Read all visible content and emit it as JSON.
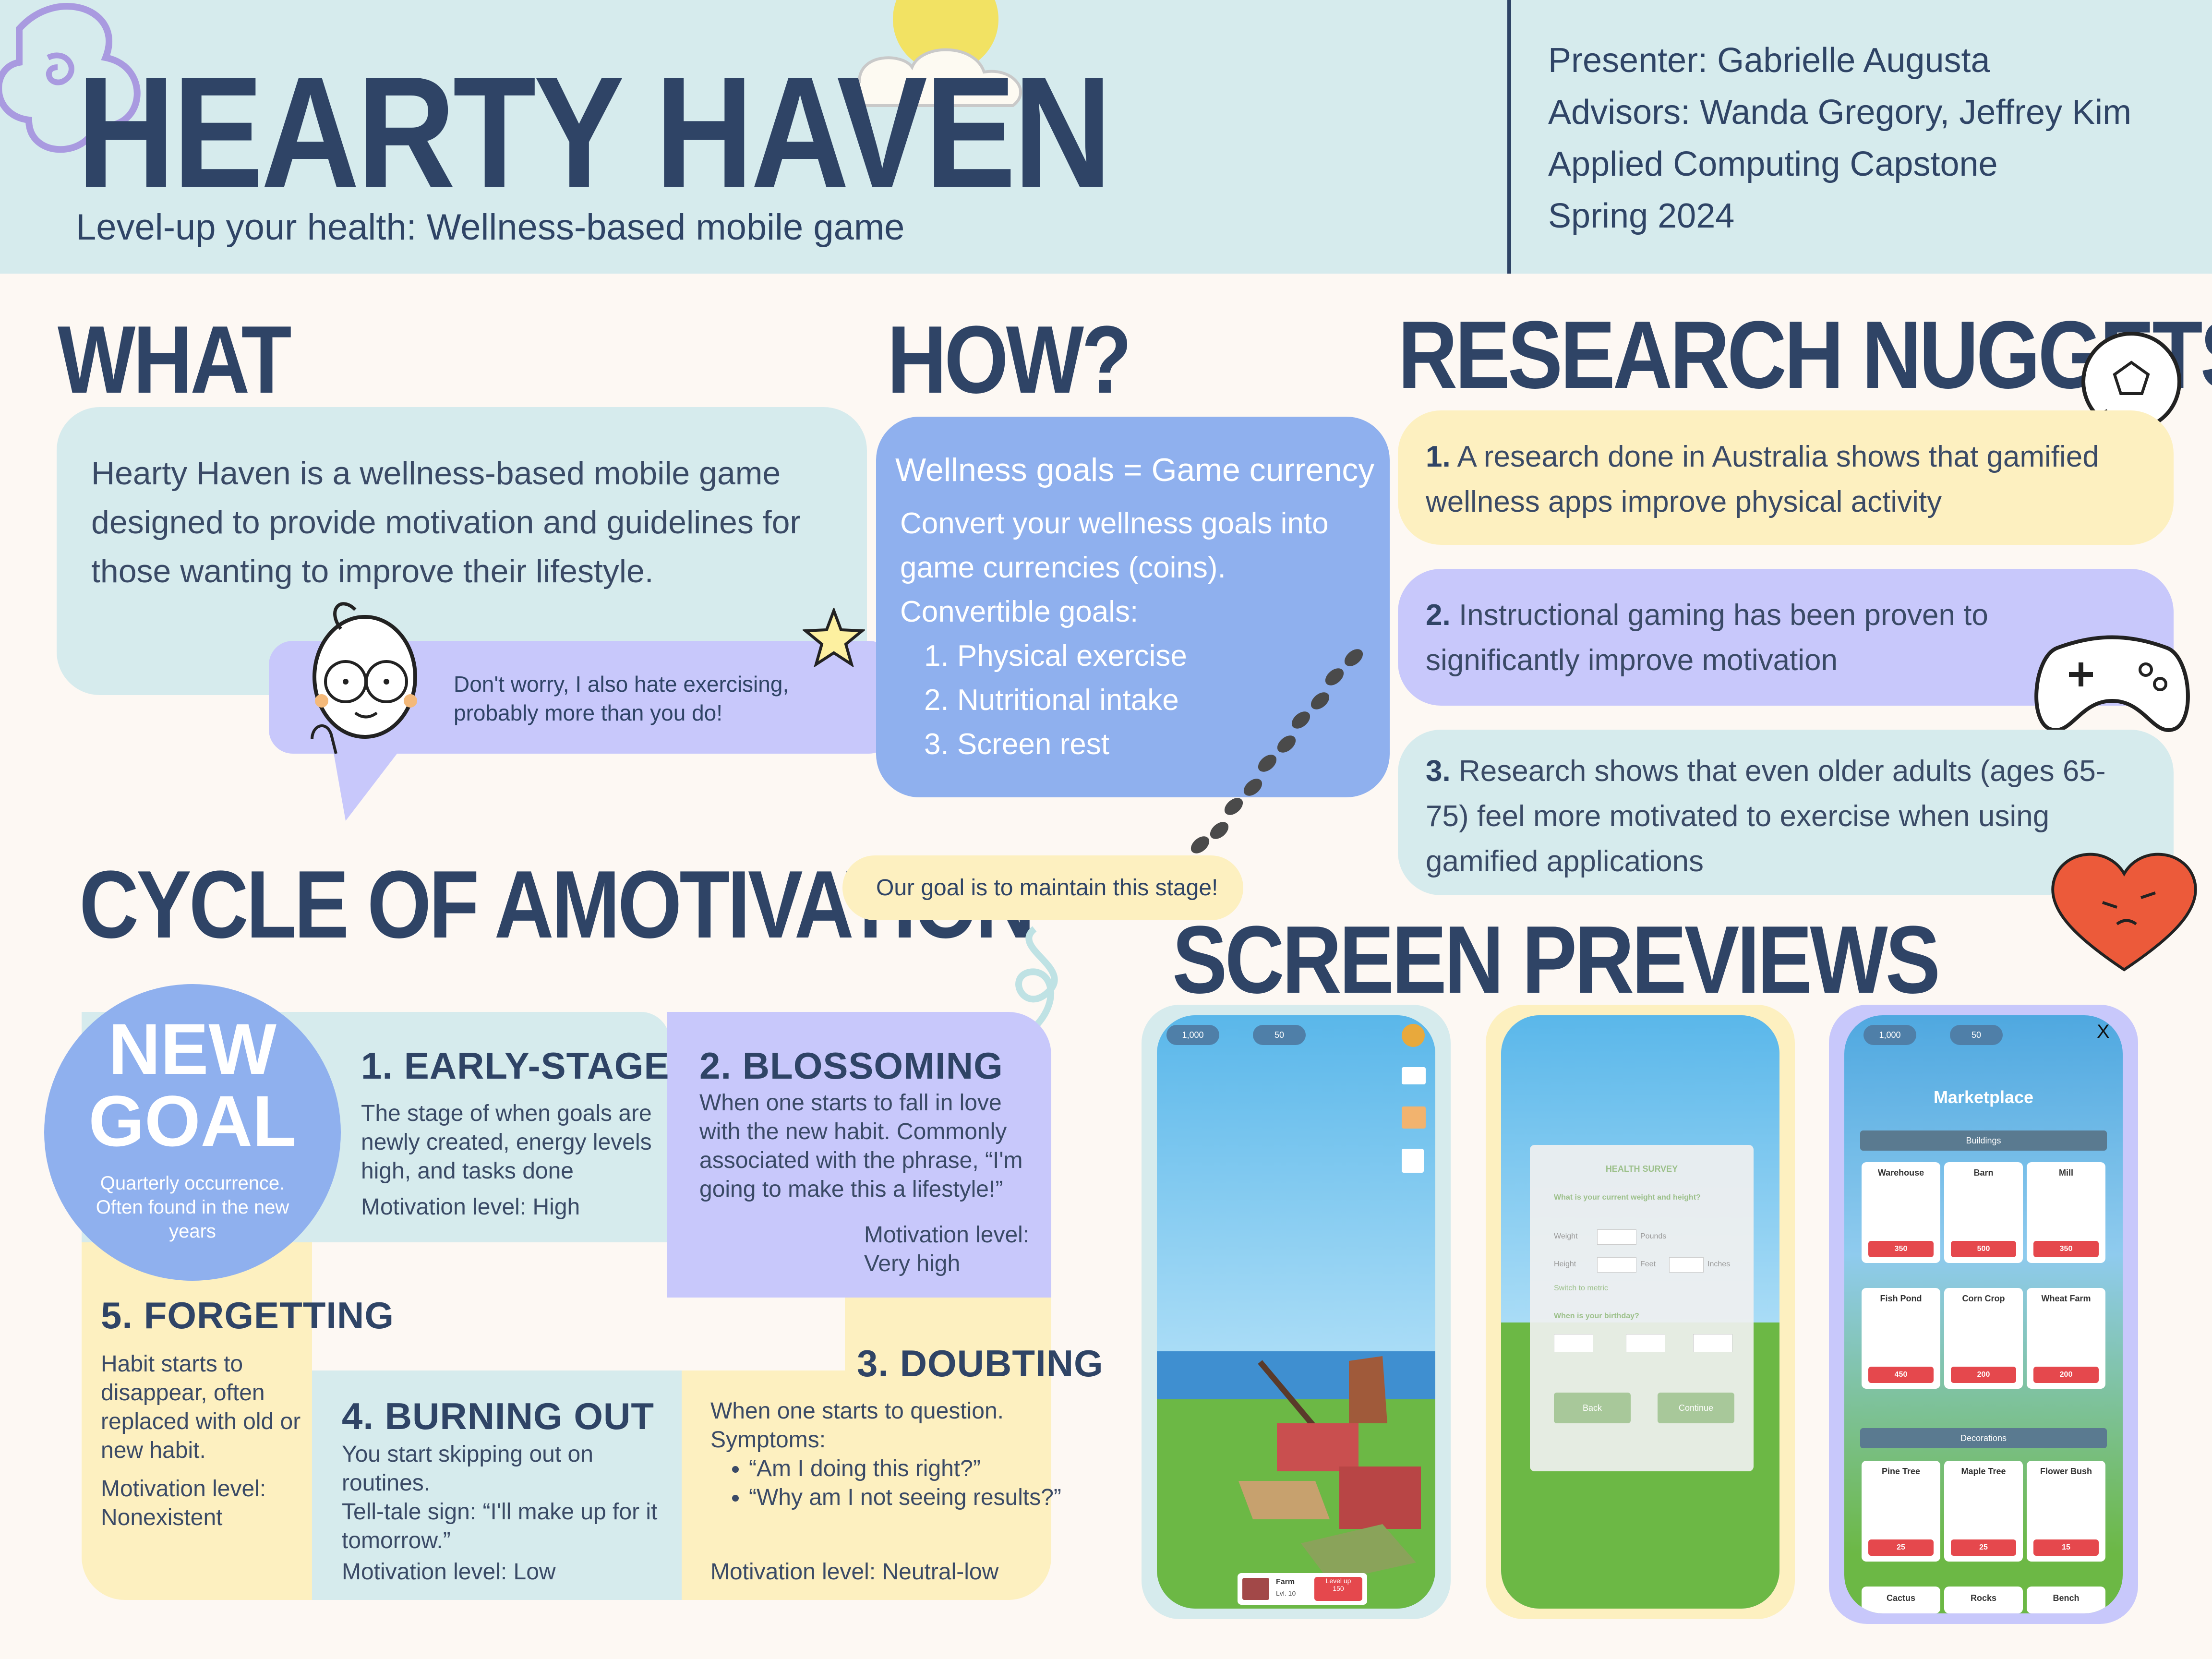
{
  "header": {
    "title": "HEARTY HAVEN",
    "subtitle": "Level-up your health: Wellness-based mobile game",
    "presenter": "Presenter: Gabrielle Augusta",
    "advisors": "Advisors: Wanda Gregory, Jeffrey Kim",
    "course": "Applied Computing Capstone",
    "term": "Spring 2024"
  },
  "what": {
    "heading": "WHAT",
    "body": "Hearty Haven is a wellness-based mobile game designed to provide motivation and guidelines for those wanting to improve their lifestyle.",
    "bubble": "Don't worry, I also hate exercising, probably more than you do!"
  },
  "how": {
    "heading": "HOW?",
    "card_title": "Wellness goals = Game currency",
    "intro": "Convert your wellness goals into game currencies (coins).",
    "goals_label": "Convertible goals:",
    "goals": [
      "1. Physical exercise",
      "2. Nutritional intake",
      "3. Screen rest"
    ]
  },
  "research": {
    "heading": "RESEARCH NUGGETS",
    "items": [
      {
        "num": "1.",
        "text": "A research done in Australia shows that gamified wellness apps improve physical activity"
      },
      {
        "num": "2.",
        "text": "Instructional gaming has been proven to significantly improve motivation"
      },
      {
        "num": "3.",
        "text": "Research shows that even older adults (ages 65-75) feel more motivated to exercise when using gamified applications"
      }
    ]
  },
  "cycle": {
    "heading": "CYCLE OF AMOTIVATION",
    "goal_note": "Our goal is to maintain this stage!",
    "new_goal": {
      "title_1": "NEW",
      "title_2": "GOAL",
      "text": "Quarterly occurrence. Often found in the new years"
    },
    "early": {
      "title": "1. EARLY-STAGE",
      "text": "The stage of when goals are newly created, energy levels high, and tasks done",
      "motivation": "Motivation level: High"
    },
    "blossoming": {
      "title": "2. BLOSSOMING",
      "text": "When one starts to fall in love with the new habit. Commonly associated with the phrase, “I'm going to make this a lifestyle!”",
      "motivation": "Motivation level: Very high"
    },
    "doubting": {
      "title": "3. DOUBTING",
      "text": "When one starts to question. Symptoms:",
      "symptoms": [
        "“Am I doing this right?”",
        "“Why am I not seeing results?”"
      ],
      "motivation": "Motivation level: Neutral-low"
    },
    "burning": {
      "title": "4. BURNING OUT",
      "text": "You start skipping out on routines.",
      "sign": "Tell-tale sign: “I'll make up for it tomorrow.”",
      "motivation": "Motivation level:  Low"
    },
    "forgetting": {
      "title": "5. FORGETTING",
      "text": "Habit starts to disappear, often replaced with old or new habit.",
      "motivation": "Motivation level: Nonexistent"
    }
  },
  "previews": {
    "heading": "SCREEN PREVIEWS",
    "farm": {
      "coins": "1,000",
      "gems": "50",
      "farm_label": "Farm",
      "farm_level": "Lvl. 10",
      "level_up": "Level up",
      "level_cost": "150"
    },
    "survey": {
      "title": "HEALTH SURVEY",
      "q1": "What is your current weight and height?",
      "weight": "Weight",
      "pounds": "Pounds",
      "height": "Height",
      "feet": "Feet",
      "inches": "Inches",
      "metric": "Switch to metric",
      "q2": "When is your birthday?",
      "back": "Back",
      "continue": "Continue"
    },
    "market": {
      "coins": "1,000",
      "gems": "50",
      "title": "Marketplace",
      "close": "X",
      "buildings_label": "Buildings",
      "buildings": [
        {
          "name": "Warehouse",
          "price": "350"
        },
        {
          "name": "Barn",
          "price": "500"
        },
        {
          "name": "Mill",
          "price": "350"
        },
        {
          "name": "Fish Pond",
          "price": "450"
        },
        {
          "name": "Corn Crop",
          "price": "200"
        },
        {
          "name": "Wheat Farm",
          "price": "200"
        }
      ],
      "decorations_label": "Decorations",
      "decorations": [
        {
          "name": "Pine Tree",
          "price": "25"
        },
        {
          "name": "Maple Tree",
          "price": "25"
        },
        {
          "name": "Flower Bush",
          "price": "15"
        }
      ],
      "more": [
        "Cactus",
        "Rocks",
        "Bench"
      ]
    }
  },
  "colors": {
    "navy": "#2f4466",
    "header_bg": "#d6ebed",
    "teal_card": "#d6ebed",
    "blue_card": "#8fb0ee",
    "lavender": "#c8c8fb",
    "yellow": "#fdf0c0"
  }
}
